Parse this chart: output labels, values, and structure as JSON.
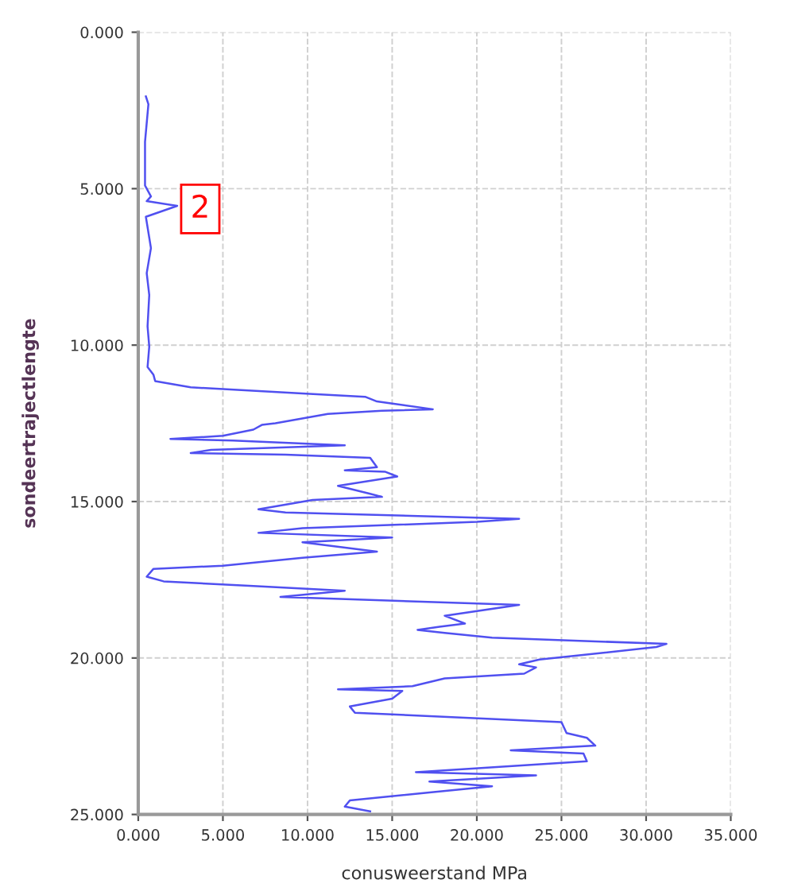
{
  "chart_data": {
    "type": "line",
    "xlabel": "conusweerstand MPa",
    "ylabel": "sondeertrajectlengte",
    "xlim": [
      0,
      35
    ],
    "ylim": [
      25,
      0
    ],
    "xticks": [
      {
        "value": 0,
        "label": "0.000"
      },
      {
        "value": 5,
        "label": "5.000"
      },
      {
        "value": 10,
        "label": "10.000"
      },
      {
        "value": 15,
        "label": "15.000"
      },
      {
        "value": 20,
        "label": "20.000"
      },
      {
        "value": 25,
        "label": "25.000"
      },
      {
        "value": 30,
        "label": "30.000"
      },
      {
        "value": 35,
        "label": "35.000"
      }
    ],
    "yticks": [
      {
        "value": 0,
        "label": "0.000"
      },
      {
        "value": 5,
        "label": "5.000"
      },
      {
        "value": 10,
        "label": "10.000"
      },
      {
        "value": 15,
        "label": "15.000"
      },
      {
        "value": 20,
        "label": "20.000"
      },
      {
        "value": 25,
        "label": "25.000"
      }
    ],
    "grid": true,
    "marker": "none",
    "line_style": "solid",
    "annotations": [
      {
        "text": "2",
        "x": 2.3,
        "y": 5.65
      }
    ],
    "series": [
      {
        "color": "#5050f0",
        "x": [
          0.45,
          0.6,
          0.4,
          0.4,
          0.75,
          0.5,
          2.3,
          0.45,
          0.75,
          0.5,
          0.65,
          0.55,
          0.65,
          0.55,
          0.9,
          1.0,
          3.1,
          9.9,
          13.4,
          14.1,
          17.4,
          14.4,
          11.2,
          8.1,
          7.3,
          6.8,
          5.0,
          1.9,
          5.6,
          12.2,
          4.3,
          3.1,
          8.7,
          13.7,
          14.1,
          12.2,
          14.6,
          15.3,
          11.8,
          13.7,
          14.4,
          10.3,
          7.1,
          8.7,
          22.5,
          20.0,
          9.7,
          7.1,
          15.0,
          9.7,
          14.1,
          9.7,
          5.0,
          0.9,
          0.5,
          1.5,
          6.8,
          12.2,
          8.4,
          22.5,
          18.1,
          19.3,
          17.8,
          16.5,
          18.1,
          20.9,
          31.2,
          30.6,
          23.7,
          22.5,
          23.5,
          22.8,
          18.1,
          16.2,
          11.8,
          15.6,
          15.0,
          12.5,
          12.8,
          25.0,
          25.3,
          26.5,
          27.0,
          22.0,
          26.3,
          26.5,
          16.4,
          23.5,
          17.2,
          20.9,
          17.2,
          12.5,
          12.2,
          13.7
        ],
        "values": [
          2.05,
          2.3,
          3.5,
          4.9,
          5.25,
          5.4,
          5.55,
          5.9,
          6.9,
          7.7,
          8.4,
          9.4,
          10.05,
          10.7,
          10.95,
          11.15,
          11.35,
          11.55,
          11.65,
          11.8,
          12.05,
          12.1,
          12.2,
          12.5,
          12.55,
          12.7,
          12.9,
          13.0,
          13.05,
          13.2,
          13.35,
          13.45,
          13.5,
          13.6,
          13.9,
          14.0,
          14.05,
          14.2,
          14.5,
          14.75,
          14.85,
          14.95,
          15.25,
          15.35,
          15.55,
          15.65,
          15.85,
          16.0,
          16.15,
          16.3,
          16.6,
          16.8,
          17.05,
          17.15,
          17.4,
          17.55,
          17.7,
          17.85,
          18.05,
          18.3,
          18.65,
          18.9,
          19.0,
          19.1,
          19.2,
          19.35,
          19.55,
          19.65,
          20.05,
          20.2,
          20.3,
          20.5,
          20.65,
          20.9,
          21.0,
          21.05,
          21.3,
          21.55,
          21.75,
          22.05,
          22.4,
          22.55,
          22.8,
          22.95,
          23.05,
          23.3,
          23.65,
          23.75,
          23.95,
          24.1,
          24.3,
          24.55,
          24.75,
          24.9
        ]
      }
    ]
  }
}
